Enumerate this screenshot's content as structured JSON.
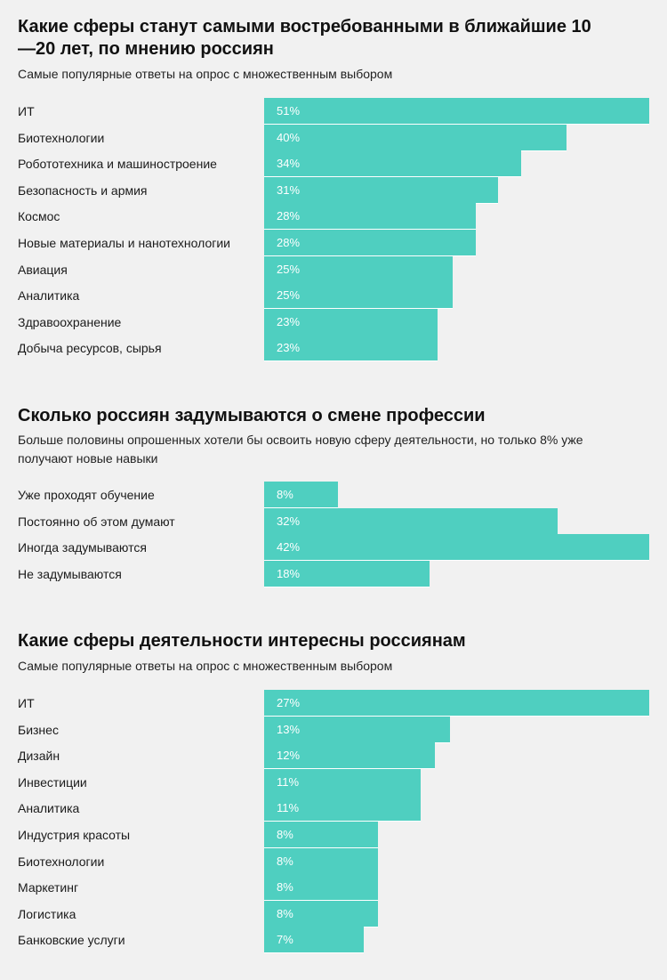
{
  "colors": {
    "background": "#f1f1f1",
    "bar": "#4fcfc0",
    "text": "#111111",
    "bar_text": "#ffffff"
  },
  "chart_data": [
    {
      "type": "bar",
      "orientation": "horizontal",
      "title": "Какие сферы станут самыми востребованными в ближайшие 10—20 лет, по мнению россиян",
      "subtitle": "Самые популярные ответы на опрос с множественным выбором",
      "categories": [
        "ИТ",
        "Биотехнологии",
        "Робототехника и машиностроение",
        "Безопасность и армия",
        "Космос",
        "Новые материалы и нанотехнологии",
        "Авиация",
        "Аналитика",
        "Здравоохранение",
        "Добыча ресурсов, сырья"
      ],
      "values": [
        51,
        40,
        34,
        31,
        28,
        28,
        25,
        25,
        23,
        23
      ],
      "value_labels": [
        "51%",
        "40%",
        "34%",
        "31%",
        "28%",
        "28%",
        "25%",
        "25%",
        "23%",
        "23%"
      ],
      "unit": "%",
      "grid": false
    },
    {
      "type": "bar",
      "orientation": "horizontal",
      "title": "Сколько россиян задумываются о смене профессии",
      "subtitle": "Больше половины опрошенных хотели бы освоить новую сферу деятельности, но только 8% уже получают новые навыки",
      "categories": [
        "Уже проходят обучение",
        "Постоянно об этом думают",
        "Иногда задумываются",
        "Не задумываются"
      ],
      "values": [
        8,
        32,
        42,
        18
      ],
      "value_labels": [
        "8%",
        "32%",
        "42%",
        "18%"
      ],
      "unit": "%",
      "grid": false
    },
    {
      "type": "bar",
      "orientation": "horizontal",
      "title": "Какие сферы деятельности интересны россиянам",
      "subtitle": "Самые популярные ответы на опрос с множественным выбором",
      "categories": [
        "ИТ",
        "Бизнес",
        "Дизайн",
        "Инвестиции",
        "Аналитика",
        "Индустрия красоты",
        "Биотехнологии",
        "Маркетинг",
        "Логистика",
        "Банковские услуги"
      ],
      "values": [
        27,
        13,
        12,
        11,
        11,
        8,
        8,
        8,
        8,
        7
      ],
      "value_labels": [
        "27%",
        "13%",
        "12%",
        "11%",
        "11%",
        "8%",
        "8%",
        "8%",
        "8%",
        "7%"
      ],
      "unit": "%",
      "grid": false
    }
  ]
}
